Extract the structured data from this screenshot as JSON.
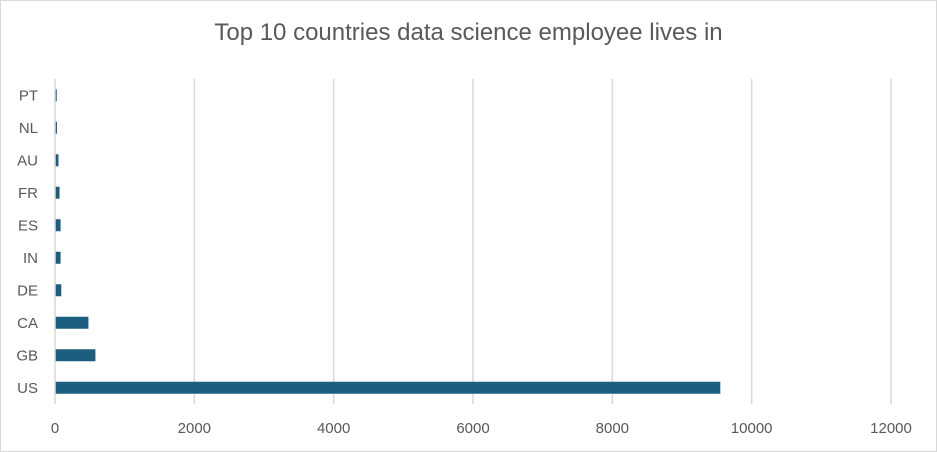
{
  "chart_data": {
    "type": "bar",
    "orientation": "horizontal",
    "title": "Top 10 countries data science employee lives in",
    "xlabel": "",
    "ylabel": "",
    "categories": [
      "US",
      "GB",
      "CA",
      "DE",
      "IN",
      "ES",
      "FR",
      "AU",
      "NL",
      "PT"
    ],
    "values": [
      9550,
      580,
      480,
      90,
      80,
      80,
      65,
      50,
      28,
      25
    ],
    "xlim": [
      0,
      12000
    ],
    "xticks": [
      0,
      2000,
      4000,
      6000,
      8000,
      10000,
      12000
    ],
    "grid": "vertical",
    "legend": "none",
    "bar_color": "#1b5e7e",
    "grid_color": "#d9d9d9"
  }
}
